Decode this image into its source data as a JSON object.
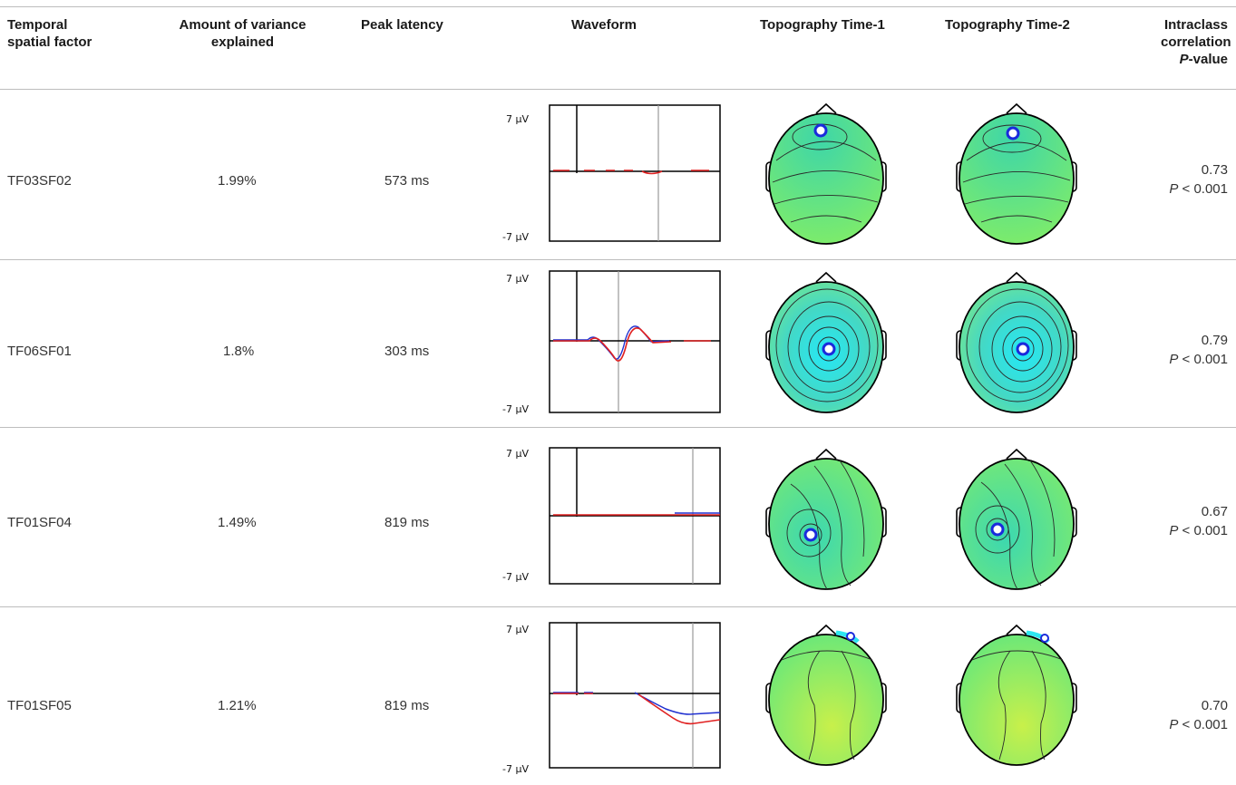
{
  "table": {
    "headers": {
      "factor": [
        "Temporal",
        "spatial factor"
      ],
      "variance": [
        "Amount of variance",
        "explained"
      ],
      "latency": "Peak latency",
      "waveform": "Waveform",
      "topo1": "Topography Time-1",
      "topo2": "Topography Time-2",
      "icc": [
        "Intraclass",
        "correlation",
        "P",
        "-value"
      ]
    },
    "rows": [
      {
        "factor": "TF03SF02",
        "variance": "1.99%",
        "latency": "573 ms",
        "icc": "0.73",
        "p_italic": "P",
        "p_rest": " < 0.001"
      },
      {
        "factor": "TF06SF01",
        "variance": "1.8%",
        "latency": "303 ms",
        "icc": "0.79",
        "p_italic": "P",
        "p_rest": " < 0.001"
      },
      {
        "factor": "TF01SF04",
        "variance": "1.49%",
        "latency": "819 ms",
        "icc": "0.67",
        "p_italic": "P",
        "p_rest": " < 0.001"
      },
      {
        "factor": "TF01SF05",
        "variance": "1.21%",
        "latency": "819 ms",
        "icc": "0.70",
        "p_italic": "P",
        "p_rest": " < 0.001"
      }
    ],
    "waveform_axis": {
      "top_label": "7 µV",
      "bottom_label": "-7 µV"
    }
  },
  "colors": {
    "rule": "#bdbdbd",
    "wave_red": "#e02020",
    "wave_blue": "#2030d0",
    "scalp_green": "#7de86a",
    "scalp_cyan": "#2ee6f0"
  }
}
